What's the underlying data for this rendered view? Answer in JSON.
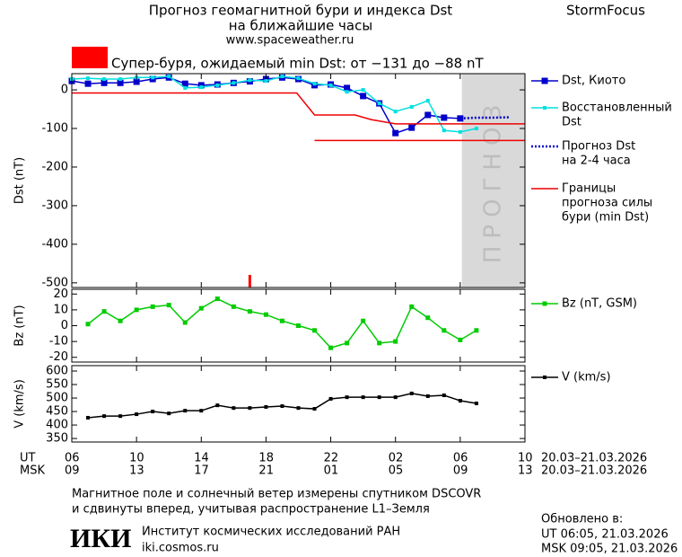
{
  "header": {
    "title": "Прогноз геомагнитной бури и индекса Dst",
    "subtitle": "на ближайшие часы",
    "url": "www.spaceweather.ru",
    "brand": "StormFocus",
    "storm_forecast": "Супер-буря, ожидаемый min Dst: от −131 до −88 nT",
    "storm_color": "#ff0000"
  },
  "chart_data": [
    {
      "type": "line",
      "ylabel": "Dst (nT)",
      "xlim": [
        0,
        28
      ],
      "ylim": [
        -512,
        42
      ],
      "yticks": [
        0,
        -100,
        -200,
        -300,
        -400,
        -500
      ],
      "forecast_zone": {
        "label": "ПРОГНОЗ",
        "x": [
          24.1,
          28
        ]
      },
      "marker_x": 11,
      "marker_color": "#ff0000",
      "series": [
        {
          "name": [
            "Dst, Киото"
          ],
          "color": "#0000cc",
          "marker": 7,
          "x": [
            0,
            1,
            2,
            3,
            4,
            5,
            6,
            7,
            8,
            9,
            10,
            11,
            12,
            13,
            14,
            15,
            16,
            17,
            18,
            19,
            20,
            21,
            22,
            23,
            24
          ],
          "values": [
            23,
            16,
            18,
            18,
            21,
            28,
            32,
            16,
            12,
            14,
            18,
            22,
            28,
            32,
            28,
            12,
            14,
            5,
            -16,
            -35,
            -112,
            -98,
            -65,
            -72,
            -74
          ]
        },
        {
          "name": [
            "Восстановленный",
            "Dst"
          ],
          "color": "#00e0e0",
          "marker": 4,
          "x": [
            0,
            1,
            2,
            3,
            4,
            5,
            6,
            7,
            8,
            9,
            10,
            11,
            12,
            13,
            14,
            15,
            16,
            17,
            18,
            19,
            20,
            21,
            22,
            23,
            24,
            25
          ],
          "values": [
            28,
            30,
            28,
            28,
            32,
            32,
            35,
            5,
            7,
            12,
            18,
            25,
            23,
            35,
            30,
            16,
            12,
            -5,
            0,
            -35,
            -56,
            -44,
            -28,
            -105,
            -109,
            -100
          ]
        },
        {
          "name": [
            "Прогноз Dst",
            "на 2-4 часа"
          ],
          "color": "#0000cc",
          "dash": true,
          "x": [
            24,
            25,
            26,
            27
          ],
          "values": [
            -74,
            -72,
            -72,
            -71
          ]
        },
        {
          "name": [
            "Границы",
            "прогноза силы",
            "бури (min Dst)"
          ],
          "color": "#ee0000",
          "x": [
            0,
            13.9,
            15,
            17.5,
            18.5,
            20,
            28
          ],
          "values": [
            -8,
            -8,
            -65,
            -65,
            -77,
            -88,
            -88
          ]
        },
        {
          "color": "#ee0000",
          "x": [
            15,
            28
          ],
          "values": [
            -131,
            -131
          ]
        }
      ]
    },
    {
      "type": "line",
      "ylabel": "Bz (nT)",
      "xlim": [
        0,
        28
      ],
      "ylim": [
        -23,
        23
      ],
      "yticks": [
        20,
        10,
        0,
        -10,
        -20
      ],
      "series": [
        {
          "name": [
            "Bz (nT, GSM)"
          ],
          "color": "#00cc00",
          "marker": 5,
          "x": [
            1,
            2,
            3,
            4,
            5,
            6,
            7,
            8,
            9,
            10,
            11,
            12,
            13,
            14,
            15,
            16,
            17,
            18,
            19,
            20,
            21,
            22,
            23,
            24,
            25
          ],
          "values": [
            1,
            9,
            3,
            10,
            12,
            13,
            2,
            11,
            17,
            12,
            9,
            7,
            3,
            0,
            -3,
            -14,
            -11,
            3,
            -11,
            -10,
            12,
            5,
            -3,
            -9,
            -3
          ]
        }
      ]
    },
    {
      "type": "line",
      "ylabel": "V (km/s)",
      "xlim": [
        0,
        28
      ],
      "ylim": [
        337,
        620
      ],
      "yticks": [
        600,
        550,
        500,
        450,
        400,
        350
      ],
      "series": [
        {
          "name": [
            "V (km/s)"
          ],
          "color": "#000000",
          "marker": 4,
          "x": [
            1,
            2,
            3,
            4,
            5,
            6,
            7,
            8,
            9,
            10,
            11,
            12,
            13,
            14,
            15,
            16,
            17,
            18,
            19,
            20,
            21,
            22,
            23,
            24,
            25
          ],
          "values": [
            427,
            433,
            433,
            440,
            450,
            443,
            453,
            453,
            473,
            463,
            463,
            467,
            470,
            463,
            460,
            497,
            503,
            503,
            503,
            503,
            517,
            507,
            510,
            490,
            480
          ]
        }
      ]
    }
  ],
  "x_axis": {
    "ut_label": "UT",
    "msk_label": "MSK",
    "ticks": [
      {
        "value": 0,
        "label": "06"
      },
      {
        "value": 4,
        "label": "10"
      },
      {
        "value": 8,
        "label": "14"
      },
      {
        "value": 12,
        "label": "18"
      },
      {
        "value": 16,
        "label": "22"
      },
      {
        "value": 20,
        "label": "02"
      },
      {
        "value": 24,
        "label": "06"
      },
      {
        "value": 28,
        "label": "10"
      }
    ],
    "msk_ticks": [
      "09",
      "13",
      "17",
      "21",
      "01",
      "05",
      "09",
      "13"
    ],
    "date_range": "20.03–21.03.2026"
  },
  "footer": {
    "note_line1": "Магнитное поле и солнечный ветер измерены спутником DSCOVR",
    "note_line2": "и сдвинуты вперед, учитывая распространение L1–Земля",
    "logo": "ИКИ",
    "institute": "Институт космических исследований РАН",
    "site": "iki.cosmos.ru",
    "updated": "Обновлено в:",
    "updated_ut": "UT  06:05, 21.03.2026",
    "updated_msk": "MSK 09:05, 21.03.2026"
  }
}
